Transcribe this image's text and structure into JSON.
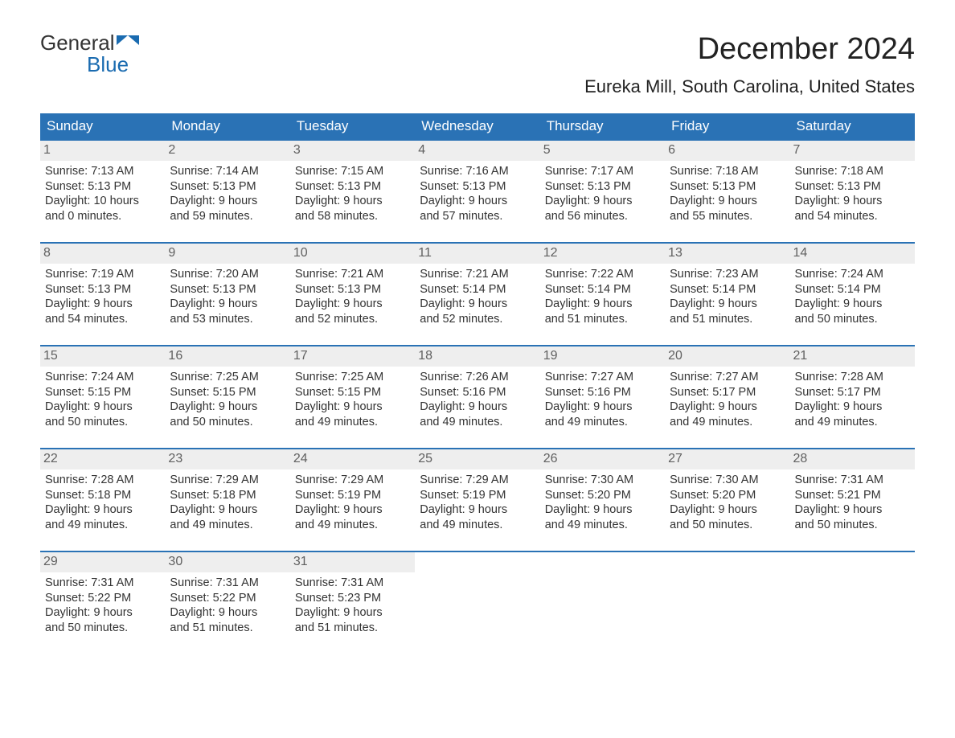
{
  "brand": {
    "top": "General",
    "bottom": "Blue",
    "accent": "#1a6bb0"
  },
  "title": "December 2024",
  "location": "Eureka Mill, South Carolina, United States",
  "colors": {
    "header_bg": "#2a72b5",
    "header_text": "#ffffff",
    "daynum_bg": "#eeeeee",
    "daynum_text": "#606060",
    "body_text": "#333333",
    "week_divider": "#2a72b5",
    "page_bg": "#ffffff"
  },
  "layout": {
    "columns": 7,
    "rows": 5
  },
  "weekday_labels": [
    "Sunday",
    "Monday",
    "Tuesday",
    "Wednesday",
    "Thursday",
    "Friday",
    "Saturday"
  ],
  "days": [
    {
      "n": "1",
      "sunrise": "Sunrise: 7:13 AM",
      "sunset": "Sunset: 5:13 PM",
      "day1": "Daylight: 10 hours",
      "day2": "and 0 minutes."
    },
    {
      "n": "2",
      "sunrise": "Sunrise: 7:14 AM",
      "sunset": "Sunset: 5:13 PM",
      "day1": "Daylight: 9 hours",
      "day2": "and 59 minutes."
    },
    {
      "n": "3",
      "sunrise": "Sunrise: 7:15 AM",
      "sunset": "Sunset: 5:13 PM",
      "day1": "Daylight: 9 hours",
      "day2": "and 58 minutes."
    },
    {
      "n": "4",
      "sunrise": "Sunrise: 7:16 AM",
      "sunset": "Sunset: 5:13 PM",
      "day1": "Daylight: 9 hours",
      "day2": "and 57 minutes."
    },
    {
      "n": "5",
      "sunrise": "Sunrise: 7:17 AM",
      "sunset": "Sunset: 5:13 PM",
      "day1": "Daylight: 9 hours",
      "day2": "and 56 minutes."
    },
    {
      "n": "6",
      "sunrise": "Sunrise: 7:18 AM",
      "sunset": "Sunset: 5:13 PM",
      "day1": "Daylight: 9 hours",
      "day2": "and 55 minutes."
    },
    {
      "n": "7",
      "sunrise": "Sunrise: 7:18 AM",
      "sunset": "Sunset: 5:13 PM",
      "day1": "Daylight: 9 hours",
      "day2": "and 54 minutes."
    },
    {
      "n": "8",
      "sunrise": "Sunrise: 7:19 AM",
      "sunset": "Sunset: 5:13 PM",
      "day1": "Daylight: 9 hours",
      "day2": "and 54 minutes."
    },
    {
      "n": "9",
      "sunrise": "Sunrise: 7:20 AM",
      "sunset": "Sunset: 5:13 PM",
      "day1": "Daylight: 9 hours",
      "day2": "and 53 minutes."
    },
    {
      "n": "10",
      "sunrise": "Sunrise: 7:21 AM",
      "sunset": "Sunset: 5:13 PM",
      "day1": "Daylight: 9 hours",
      "day2": "and 52 minutes."
    },
    {
      "n": "11",
      "sunrise": "Sunrise: 7:21 AM",
      "sunset": "Sunset: 5:14 PM",
      "day1": "Daylight: 9 hours",
      "day2": "and 52 minutes."
    },
    {
      "n": "12",
      "sunrise": "Sunrise: 7:22 AM",
      "sunset": "Sunset: 5:14 PM",
      "day1": "Daylight: 9 hours",
      "day2": "and 51 minutes."
    },
    {
      "n": "13",
      "sunrise": "Sunrise: 7:23 AM",
      "sunset": "Sunset: 5:14 PM",
      "day1": "Daylight: 9 hours",
      "day2": "and 51 minutes."
    },
    {
      "n": "14",
      "sunrise": "Sunrise: 7:24 AM",
      "sunset": "Sunset: 5:14 PM",
      "day1": "Daylight: 9 hours",
      "day2": "and 50 minutes."
    },
    {
      "n": "15",
      "sunrise": "Sunrise: 7:24 AM",
      "sunset": "Sunset: 5:15 PM",
      "day1": "Daylight: 9 hours",
      "day2": "and 50 minutes."
    },
    {
      "n": "16",
      "sunrise": "Sunrise: 7:25 AM",
      "sunset": "Sunset: 5:15 PM",
      "day1": "Daylight: 9 hours",
      "day2": "and 50 minutes."
    },
    {
      "n": "17",
      "sunrise": "Sunrise: 7:25 AM",
      "sunset": "Sunset: 5:15 PM",
      "day1": "Daylight: 9 hours",
      "day2": "and 49 minutes."
    },
    {
      "n": "18",
      "sunrise": "Sunrise: 7:26 AM",
      "sunset": "Sunset: 5:16 PM",
      "day1": "Daylight: 9 hours",
      "day2": "and 49 minutes."
    },
    {
      "n": "19",
      "sunrise": "Sunrise: 7:27 AM",
      "sunset": "Sunset: 5:16 PM",
      "day1": "Daylight: 9 hours",
      "day2": "and 49 minutes."
    },
    {
      "n": "20",
      "sunrise": "Sunrise: 7:27 AM",
      "sunset": "Sunset: 5:17 PM",
      "day1": "Daylight: 9 hours",
      "day2": "and 49 minutes."
    },
    {
      "n": "21",
      "sunrise": "Sunrise: 7:28 AM",
      "sunset": "Sunset: 5:17 PM",
      "day1": "Daylight: 9 hours",
      "day2": "and 49 minutes."
    },
    {
      "n": "22",
      "sunrise": "Sunrise: 7:28 AM",
      "sunset": "Sunset: 5:18 PM",
      "day1": "Daylight: 9 hours",
      "day2": "and 49 minutes."
    },
    {
      "n": "23",
      "sunrise": "Sunrise: 7:29 AM",
      "sunset": "Sunset: 5:18 PM",
      "day1": "Daylight: 9 hours",
      "day2": "and 49 minutes."
    },
    {
      "n": "24",
      "sunrise": "Sunrise: 7:29 AM",
      "sunset": "Sunset: 5:19 PM",
      "day1": "Daylight: 9 hours",
      "day2": "and 49 minutes."
    },
    {
      "n": "25",
      "sunrise": "Sunrise: 7:29 AM",
      "sunset": "Sunset: 5:19 PM",
      "day1": "Daylight: 9 hours",
      "day2": "and 49 minutes."
    },
    {
      "n": "26",
      "sunrise": "Sunrise: 7:30 AM",
      "sunset": "Sunset: 5:20 PM",
      "day1": "Daylight: 9 hours",
      "day2": "and 49 minutes."
    },
    {
      "n": "27",
      "sunrise": "Sunrise: 7:30 AM",
      "sunset": "Sunset: 5:20 PM",
      "day1": "Daylight: 9 hours",
      "day2": "and 50 minutes."
    },
    {
      "n": "28",
      "sunrise": "Sunrise: 7:31 AM",
      "sunset": "Sunset: 5:21 PM",
      "day1": "Daylight: 9 hours",
      "day2": "and 50 minutes."
    },
    {
      "n": "29",
      "sunrise": "Sunrise: 7:31 AM",
      "sunset": "Sunset: 5:22 PM",
      "day1": "Daylight: 9 hours",
      "day2": "and 50 minutes."
    },
    {
      "n": "30",
      "sunrise": "Sunrise: 7:31 AM",
      "sunset": "Sunset: 5:22 PM",
      "day1": "Daylight: 9 hours",
      "day2": "and 51 minutes."
    },
    {
      "n": "31",
      "sunrise": "Sunrise: 7:31 AM",
      "sunset": "Sunset: 5:23 PM",
      "day1": "Daylight: 9 hours",
      "day2": "and 51 minutes."
    }
  ]
}
